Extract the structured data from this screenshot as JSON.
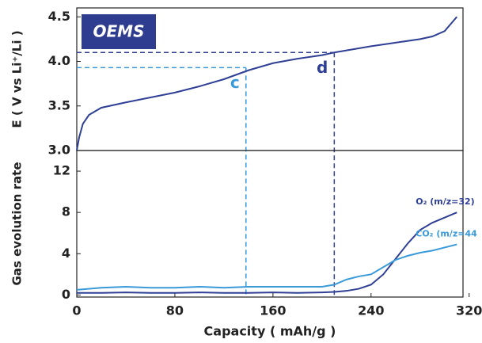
{
  "chart_data": [
    {
      "type": "line",
      "badge": "OEMS",
      "ylabel": "E ( V vs Li⁺/Li )",
      "x": [
        0,
        2,
        5,
        10,
        20,
        40,
        80,
        100,
        120,
        140,
        160,
        180,
        200,
        210,
        240,
        260,
        280,
        290,
        300,
        305,
        310
      ],
      "values": [
        3.0,
        3.15,
        3.3,
        3.4,
        3.48,
        3.54,
        3.65,
        3.72,
        3.8,
        3.9,
        3.98,
        4.03,
        4.07,
        4.1,
        4.17,
        4.21,
        4.25,
        4.28,
        4.34,
        4.42,
        4.5
      ],
      "color": "#2f3f95",
      "xlim": [
        0,
        315
      ],
      "ylim": [
        3.0,
        4.6
      ],
      "yticks": [
        {
          "value": 3.0,
          "label": "3.0"
        },
        3.5,
        {
          "value": 4.0,
          "label": "4.0"
        },
        4.5
      ],
      "annotations": [
        {
          "text": "c",
          "x": 138,
          "y": 3.93,
          "color": "#3a9ad9"
        },
        {
          "text": "d",
          "x": 210,
          "y": 4.1,
          "color": "#2f3f95"
        }
      ]
    },
    {
      "type": "line",
      "ylabel": "Gas evolution rate",
      "xlabel": "Capacity ( mAh/g )",
      "x": [
        0,
        20,
        40,
        60,
        80,
        100,
        120,
        140,
        160,
        180,
        200,
        210,
        220,
        230,
        240,
        250,
        260,
        270,
        280,
        290,
        300,
        310
      ],
      "series": [
        {
          "name": "O₂ (m/z=32)",
          "color": "#2f3f95",
          "values": [
            0.2,
            0.2,
            0.25,
            0.2,
            0.2,
            0.25,
            0.2,
            0.2,
            0.25,
            0.2,
            0.25,
            0.3,
            0.4,
            0.6,
            1.0,
            2.0,
            3.5,
            5.0,
            6.3,
            7.0,
            7.5,
            8.0
          ]
        },
        {
          "name": "CO₂ (m/z=44",
          "color": "#3a9ad9",
          "values": [
            0.5,
            0.7,
            0.8,
            0.7,
            0.7,
            0.8,
            0.7,
            0.8,
            0.8,
            0.8,
            0.8,
            1.0,
            1.5,
            1.8,
            2.0,
            2.7,
            3.4,
            3.8,
            4.1,
            4.3,
            4.6,
            4.9
          ]
        }
      ],
      "xlim": [
        0,
        315
      ],
      "ylim": [
        -0.2,
        14
      ],
      "xticks": [
        0,
        80,
        160,
        240,
        320
      ],
      "yticks": [
        0,
        4,
        8,
        12
      ]
    }
  ]
}
